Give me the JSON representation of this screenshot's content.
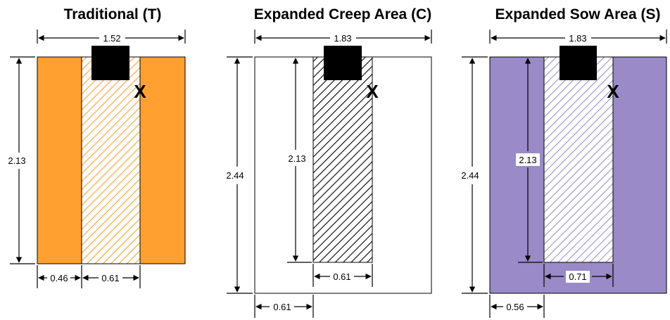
{
  "panels": [
    {
      "title": "Traditional (T)",
      "width_label": "1.52",
      "height_label": "2.13",
      "inner_height_label": "",
      "left_bottom_label": "0.46",
      "center_bottom_label": "0.61",
      "marker": "X",
      "outer_color": "#FFA030",
      "hatch_color": "#FFA030"
    },
    {
      "title": "Expanded Creep Area (C)",
      "width_label": "1.83",
      "height_label": "2.44",
      "inner_height_label": "2.13",
      "left_bottom_label": "0.61",
      "center_bottom_label": "0.61",
      "marker": "X",
      "outer_color": "#FFFFFF",
      "hatch_color": "#000000"
    },
    {
      "title": "Expanded Sow Area (S)",
      "width_label": "1.83",
      "height_label": "2.44",
      "inner_height_label": "2.13",
      "left_bottom_label": "0.56",
      "center_bottom_label": "0.71",
      "marker": "X",
      "outer_color": "#9A8AC8",
      "hatch_color": "#7A6AC0"
    }
  ]
}
